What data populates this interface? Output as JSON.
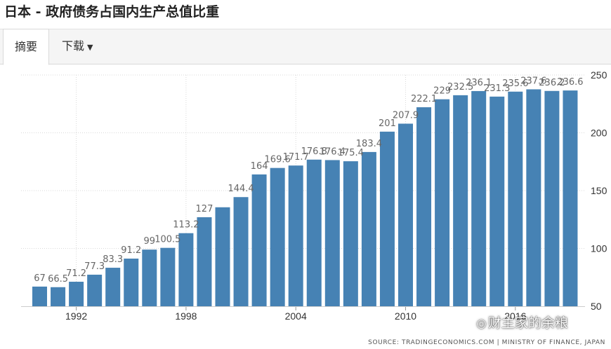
{
  "title": "日本 - 政府债务占国内生产总值比重",
  "tabs": [
    {
      "label": "摘要",
      "active": true
    },
    {
      "label": "下载",
      "active": false,
      "icon": "caret-down-icon"
    }
  ],
  "colors": {
    "bar": "#4682b4",
    "grid": "#d9d9d9"
  },
  "chart_data": {
    "type": "bar",
    "categories": [
      "1990",
      "1991",
      "1992",
      "1993",
      "1994",
      "1995",
      "1996",
      "1997",
      "1998",
      "1999",
      "2000",
      "2001",
      "2002",
      "2003",
      "2004",
      "2005",
      "2006",
      "2007",
      "2008",
      "2009",
      "2010",
      "2011",
      "2012",
      "2013",
      "2014",
      "2015",
      "2016",
      "2017",
      "2018",
      "2019"
    ],
    "values": [
      67,
      66.5,
      71.2,
      77.3,
      83.3,
      91.2,
      99,
      100.5,
      113.2,
      127,
      135.6,
      144.4,
      164,
      169.6,
      171.7,
      176.8,
      176.4,
      175.4,
      183.4,
      201,
      207.9,
      222.1,
      229,
      232.5,
      236.1,
      231.3,
      235.6,
      237.6,
      236.2,
      236.6
    ],
    "data_labels": [
      "67",
      "66.5",
      "71.2",
      "77.3",
      "83.3",
      "91.2",
      "99",
      "100.5",
      "113.2",
      "127",
      "",
      "144.4",
      "164",
      "169.6",
      "171.7",
      "176.8",
      "176.4",
      "175.4",
      "183.4",
      "201",
      "207.9",
      "222.1",
      "229",
      "232.5",
      "236.1",
      "231.3",
      "235.6",
      "237.6",
      "236.2",
      "236.6"
    ],
    "x_tick_labels": [
      "1992",
      "1998",
      "2004",
      "2010",
      "2016"
    ],
    "y_tick_labels": [
      "50",
      "100",
      "150",
      "200",
      "250"
    ],
    "ylim": [
      50,
      250
    ],
    "y_axis_side": "right",
    "grid": true,
    "source": "SOURCE: TRADINGECONOMICS.COM | MINISTRY OF FINANCE, JAPAN"
  },
  "watermark": {
    "icon": "wechat-icon",
    "text": "财主家的余粮"
  }
}
